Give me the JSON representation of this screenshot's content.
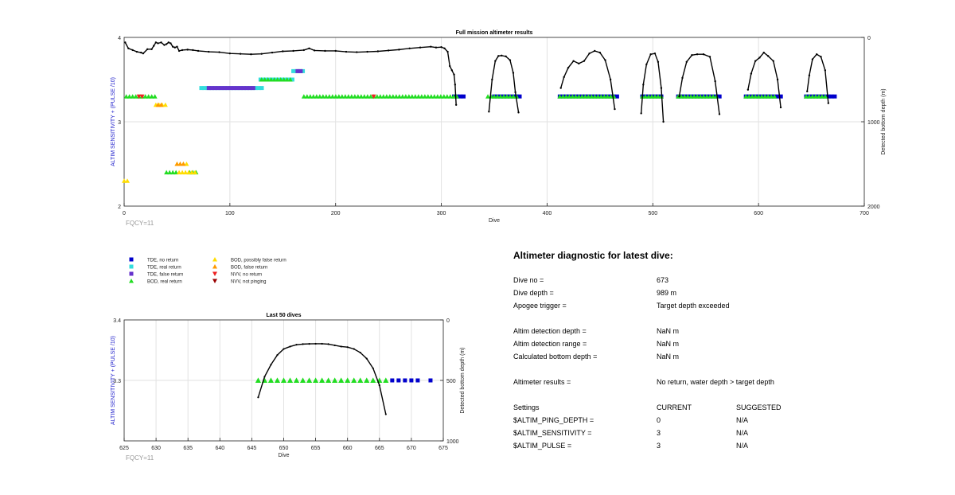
{
  "chart_data": [
    {
      "type": "scatter",
      "title": "Full mission altimeter results",
      "xlabel": "Dive",
      "ylabel": "ALTIM SENSITIVITY + (PULSE /10)",
      "y2label": "Detected bottom depth (m)",
      "xlim": [
        0,
        700
      ],
      "ylim": [
        2,
        4
      ],
      "y2lim": [
        0,
        2000
      ],
      "y2_reversed": true,
      "xticks": [
        "0",
        "100",
        "200",
        "300",
        "400",
        "500",
        "600",
        "700"
      ],
      "yticks": [
        "2",
        "3",
        "4"
      ],
      "y2ticks": [
        "0",
        "1000",
        "2000"
      ],
      "grid": true,
      "annotation": "FQCY=11",
      "marker_series": [
        {
          "name": "TDE, no return",
          "color": "#0000cc",
          "marker": "square",
          "y": 3.3,
          "segments": [
            [
              312,
              322
            ],
            [
              350,
              375
            ],
            [
              412,
              468
            ],
            [
              490,
              510
            ],
            [
              524,
              566
            ],
            [
              588,
              622
            ],
            [
              645,
              673
            ]
          ]
        },
        {
          "name": "TDE, real return",
          "color": "#33dddd",
          "marker": "square",
          "runs": [
            [
              3.4,
              73,
              132
            ],
            [
              3.5,
              129,
              160
            ],
            [
              3.6,
              160,
              172
            ]
          ]
        },
        {
          "name": "TDE, false return",
          "color": "#6633cc",
          "marker": "square",
          "runs": [
            [
              3.4,
              80,
              125
            ],
            [
              3.6,
              164,
              170
            ]
          ]
        },
        {
          "name": "BOD, real return",
          "color": "#22dd22",
          "marker": "triangle",
          "runs": [
            [
              3.3,
              2,
              30
            ],
            [
              3.3,
              170,
              316
            ],
            [
              3.3,
              344,
              373
            ],
            [
              3.3,
              412,
              465
            ],
            [
              3.3,
              490,
              510
            ],
            [
              3.3,
              524,
              563
            ],
            [
              3.3,
              588,
              618
            ],
            [
              3.3,
              645,
              666
            ],
            [
              3.5,
              130,
              160
            ],
            [
              2.4,
              40,
              50
            ],
            [
              2.4,
              62,
              70
            ]
          ]
        },
        {
          "name": "BOD, possibly false return",
          "color": "#ffdd00",
          "marker": "triangle",
          "runs": [
            [
              3.2,
              30,
              40
            ],
            [
              2.5,
              50,
              60
            ],
            [
              2.4,
              52,
              68
            ],
            [
              2.3,
              0,
              4
            ]
          ]
        },
        {
          "name": "BOD, false return",
          "color": "#ff9900",
          "marker": "triangle",
          "runs": [
            [
              3.2,
              32,
              38
            ],
            [
              2.5,
              50,
              58
            ]
          ]
        },
        {
          "name": "NVV, no return",
          "color": "#ee2222",
          "marker": "triangle-down",
          "runs": [
            [
              3.3,
              14,
              20
            ],
            [
              3.3,
              236,
              238
            ]
          ]
        },
        {
          "name": "NVV, not pinging",
          "color": "#990000",
          "marker": "triangle-down",
          "runs": []
        }
      ],
      "depth_line": {
        "x": [
          1,
          4,
          8,
          12,
          16,
          18,
          22,
          26,
          28,
          30,
          32,
          35,
          38,
          40,
          42,
          44,
          46,
          48,
          50,
          52,
          55,
          60,
          65,
          70,
          80,
          90,
          100,
          110,
          120,
          130,
          140,
          150,
          160,
          170,
          175,
          180,
          190,
          200,
          210,
          220,
          230,
          240,
          250,
          260,
          270,
          280,
          290,
          295,
          300,
          303,
          306,
          308,
          310,
          312,
          313,
          314
        ],
        "y": [
          60,
          130,
          150,
          170,
          180,
          190,
          140,
          140,
          100,
          60,
          70,
          60,
          90,
          80,
          60,
          70,
          110,
          120,
          110,
          160,
          150,
          145,
          150,
          160,
          170,
          175,
          190,
          195,
          200,
          195,
          180,
          165,
          160,
          150,
          130,
          155,
          160,
          160,
          170,
          175,
          170,
          165,
          155,
          145,
          130,
          120,
          110,
          120,
          115,
          130,
          170,
          340,
          390,
          440,
          560,
          800
        ],
        "dives": [
          {
            "x": [
              345,
              348,
              351,
              354,
              357,
              361,
              365,
              368,
              370,
              373
            ],
            "y": [
              880,
              500,
              280,
              220,
              215,
              225,
              270,
              420,
              650,
              890
            ]
          },
          {
            "x": [
              413,
              416,
              420,
              425,
              430,
              435,
              440,
              445,
              450,
              455,
              460,
              464
            ],
            "y": [
              600,
              470,
              360,
              280,
              310,
              280,
              190,
              160,
              180,
              270,
              500,
              850
            ]
          },
          {
            "x": [
              489,
              491,
              494,
              498,
              502,
              505,
              508,
              510
            ],
            "y": [
              900,
              560,
              320,
              200,
              190,
              290,
              600,
              1000
            ]
          },
          {
            "x": [
              525,
              528,
              532,
              537,
              542,
              548,
              554,
              559,
              563
            ],
            "y": [
              700,
              480,
              290,
              210,
              200,
              200,
              230,
              520,
              910
            ]
          },
          {
            "x": [
              590,
              593,
              597,
              601,
              605,
              609,
              614,
              618,
              621
            ],
            "y": [
              620,
              430,
              280,
              240,
              180,
              220,
              280,
              500,
              830
            ]
          },
          {
            "x": [
              646,
              648,
              651,
              655,
              659,
              663,
              666
            ],
            "y": [
              640,
              450,
              260,
              200,
              230,
              390,
              780
            ]
          }
        ]
      }
    },
    {
      "type": "scatter",
      "title": "Last 50 dives",
      "xlabel": "Dive",
      "ylabel": "ALTIM SENSITIVITY + (PULSE /10)",
      "y2label": "Detected bottom depth (m)",
      "xlim": [
        625,
        675
      ],
      "ylim": [
        3.2,
        3.4
      ],
      "y2lim": [
        0,
        1000
      ],
      "y2_reversed": true,
      "xticks": [
        "625",
        "630",
        "635",
        "640",
        "645",
        "650",
        "655",
        "660",
        "665",
        "670",
        "675"
      ],
      "yticks": [
        "3.3",
        "3.4"
      ],
      "y2ticks": [
        "0",
        "500",
        "1000"
      ],
      "grid": true,
      "annotation": "FQCY=11",
      "bod_real_return": {
        "x": [
          646,
          647,
          648,
          649,
          650,
          651,
          652,
          653,
          654,
          655,
          656,
          657,
          658,
          659,
          660,
          661,
          662,
          663,
          664,
          665,
          666
        ],
        "y": 3.3
      },
      "tde_no_return": {
        "x": [
          667,
          668,
          669,
          670,
          671,
          673
        ],
        "y": 3.3
      },
      "depth_line": {
        "x": [
          646,
          647,
          648,
          649,
          650,
          651,
          652,
          653,
          654,
          655,
          656,
          657,
          658,
          659,
          660,
          661,
          662,
          663,
          664,
          665,
          666
        ],
        "y": [
          640,
          470,
          370,
          290,
          240,
          220,
          205,
          200,
          198,
          197,
          197,
          200,
          210,
          220,
          225,
          240,
          270,
          320,
          400,
          540,
          780
        ]
      }
    }
  ],
  "legend": [
    {
      "label": "TDE, no return",
      "color": "#0000cc",
      "marker": "square"
    },
    {
      "label": "TDE, real return",
      "color": "#33dddd",
      "marker": "square"
    },
    {
      "label": "TDE, false return",
      "color": "#6633cc",
      "marker": "square"
    },
    {
      "label": "BOD, real return",
      "color": "#22dd22",
      "marker": "triangle"
    },
    {
      "label": "BOD, possibly false return",
      "color": "#ffdd00",
      "marker": "triangle"
    },
    {
      "label": "BOD, false return",
      "color": "#ff9900",
      "marker": "triangle"
    },
    {
      "label": "NVV, no return",
      "color": "#ee2222",
      "marker": "triangle-down"
    },
    {
      "label": "NVV, not pinging",
      "color": "#990000",
      "marker": "triangle-down"
    }
  ],
  "diagnostic": {
    "title": "Altimeter diagnostic for latest dive:",
    "dive_no_label": "Dive no =",
    "dive_no": "673",
    "dive_depth_label": "Dive depth =",
    "dive_depth": "989 m",
    "apogee_label": "Apogee trigger =",
    "apogee": "Target depth exceeded",
    "altim_det_depth_label": "Altim detection depth =",
    "altim_det_depth": "NaN m",
    "altim_det_range_label": "Altim detection range =",
    "altim_det_range": "NaN m",
    "calc_bottom_label": "Calculated bottom depth =",
    "calc_bottom": "NaN m",
    "results_label": "Altimeter results =",
    "results": "No return, water depth > target depth",
    "settings_label": "Settings",
    "current_label": "CURRENT",
    "suggested_label": "SUGGESTED",
    "settings": [
      {
        "name": "$ALTIM_PING_DEPTH =",
        "current": "0",
        "suggested": "N/A"
      },
      {
        "name": "$ALTIM_SENSITIVITY =",
        "current": "3",
        "suggested": "N/A"
      },
      {
        "name": "$ALTIM_PULSE =",
        "current": "3",
        "suggested": "N/A"
      }
    ]
  },
  "colors": {
    "axis_label_blue": "#2222cc",
    "grid": "#e2e2e2",
    "annotation_gray": "#999999",
    "depth_line": "#000000"
  }
}
